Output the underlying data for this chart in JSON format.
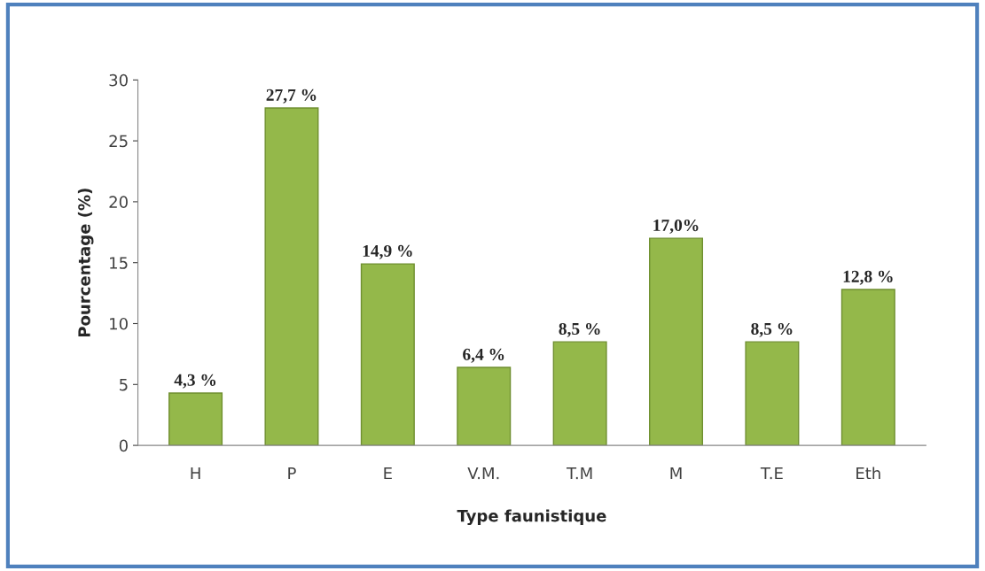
{
  "chart_data": {
    "type": "bar",
    "xlabel": "Type faunistique",
    "ylabel": "Pourcentage (%)",
    "categories": [
      "H",
      "P",
      "E",
      "V.M.",
      "T.M",
      "M",
      "T.E",
      "Eth"
    ],
    "values": [
      4.3,
      27.7,
      14.9,
      6.4,
      8.5,
      17.0,
      8.5,
      12.8
    ],
    "value_labels": [
      "4,3 %",
      "27,7 %",
      "14,9 %",
      "6,4 %",
      "8,5 %",
      "17,0%",
      "8,5 %",
      "12,8 %"
    ],
    "color": "#94b84a",
    "ylim": [
      0,
      30
    ],
    "yticks": [
      0,
      5,
      10,
      15,
      20,
      25,
      30
    ],
    "grid": false,
    "legend": false
  }
}
